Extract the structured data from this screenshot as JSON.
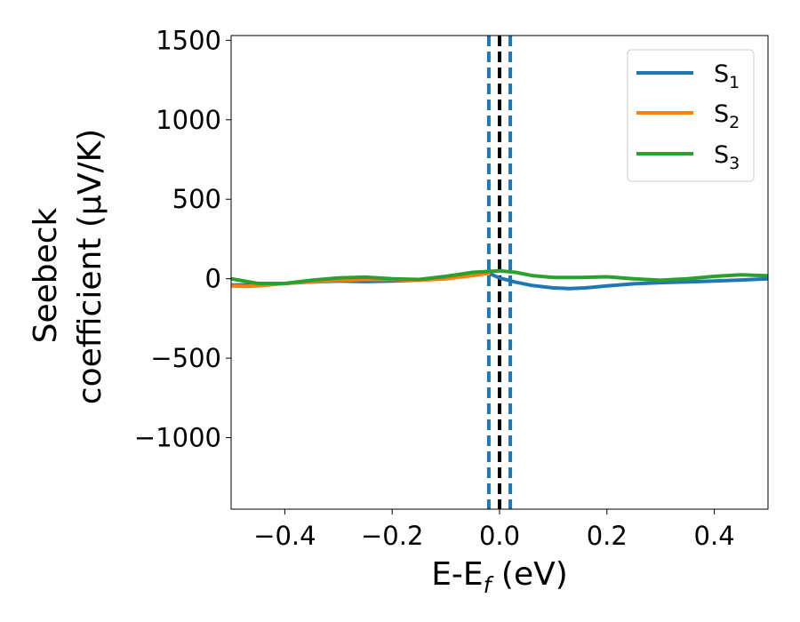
{
  "chart_data": {
    "type": "line",
    "xlabel_parts": {
      "main": "E-E",
      "sub": "f",
      "unit": " (eV)"
    },
    "ylabel_lines": [
      "Seebeck",
      "coefficient  (μV/K)"
    ],
    "xlim": [
      -0.5,
      0.5
    ],
    "ylim": [
      -1450,
      1530
    ],
    "xticks": [
      -0.4,
      -0.2,
      0.0,
      0.2,
      0.4
    ],
    "xtick_labels": [
      "−0.4",
      "−0.2",
      "0.0",
      "0.2",
      "0.4"
    ],
    "yticks": [
      -1000,
      -500,
      0,
      500,
      1000,
      1500
    ],
    "ytick_labels": [
      "−1000",
      "−500",
      "0",
      "500",
      "1000",
      "1500"
    ],
    "grid": false,
    "legend_placement": "top-right",
    "series": [
      {
        "name": "S₁",
        "label_main": "S",
        "label_sub": "1",
        "color": "#1f77b4",
        "x": [
          -0.5,
          -0.45,
          -0.4,
          -0.35,
          -0.3,
          -0.25,
          -0.2,
          -0.15,
          -0.1,
          -0.05,
          -0.02,
          0.0,
          0.03,
          0.06,
          0.1,
          0.13,
          0.16,
          0.2,
          0.25,
          0.3,
          0.35,
          0.4,
          0.45,
          0.5
        ],
        "y": [
          -40,
          -38,
          -30,
          -20,
          -15,
          -18,
          -14,
          -8,
          2,
          22,
          35,
          5,
          -22,
          -42,
          -58,
          -62,
          -58,
          -45,
          -32,
          -25,
          -20,
          -14,
          -8,
          0
        ]
      },
      {
        "name": "S₂",
        "label_main": "S",
        "label_sub": "2",
        "color": "#ff7f0e",
        "x": [
          -0.5,
          -0.47,
          -0.44,
          -0.4,
          -0.35,
          -0.3,
          -0.25,
          -0.2,
          -0.15,
          -0.1,
          -0.05,
          -0.02
        ],
        "y": [
          -45,
          -48,
          -42,
          -30,
          -18,
          -10,
          -5,
          -5,
          -10,
          0,
          20,
          35
        ]
      },
      {
        "name": "S₃",
        "label_main": "S",
        "label_sub": "3",
        "color": "#2ca02c",
        "x": [
          -0.5,
          -0.45,
          -0.4,
          -0.35,
          -0.3,
          -0.25,
          -0.2,
          -0.15,
          -0.1,
          -0.05,
          0.0,
          0.03,
          0.06,
          0.1,
          0.15,
          0.2,
          0.25,
          0.3,
          0.35,
          0.4,
          0.45,
          0.5
        ],
        "y": [
          0,
          -30,
          -30,
          -10,
          5,
          10,
          0,
          -5,
          15,
          40,
          50,
          40,
          20,
          8,
          8,
          12,
          0,
          -10,
          0,
          15,
          25,
          18
        ]
      }
    ],
    "vlines": [
      {
        "x": -0.02,
        "color": "#1f77b4",
        "style": "dashed"
      },
      {
        "x": 0.02,
        "color": "#1f77b4",
        "style": "dashed"
      },
      {
        "x": 0.0,
        "color": "#000000",
        "style": "dashed"
      }
    ]
  }
}
